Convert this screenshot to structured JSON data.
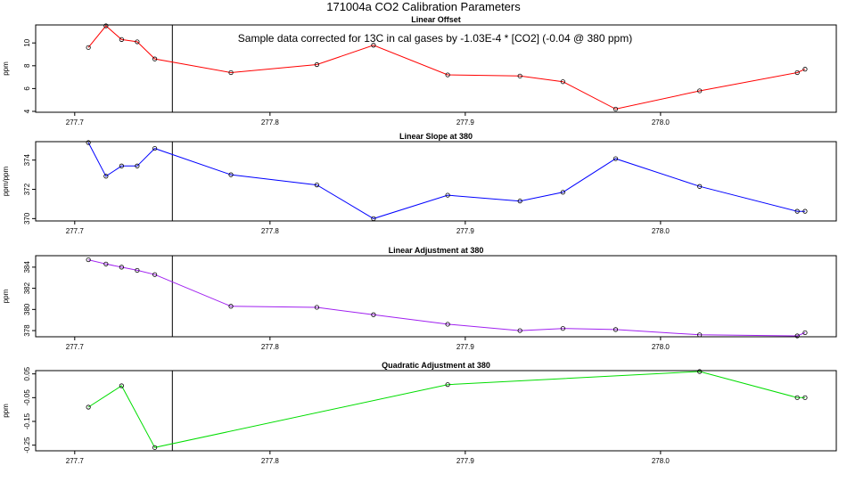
{
  "figure": {
    "title": "171004a   CO2 Calibration Parameters",
    "annotation": "Sample data corrected for 13C in cal gases by -1.03E-4 * [CO2] (-0.04 @ 380 ppm)"
  },
  "chart_data": [
    {
      "type": "line",
      "title": "Linear Offset",
      "xlabel": "",
      "ylabel": "ppm",
      "xlim": [
        277.68,
        278.09
      ],
      "ylim": [
        4,
        11.5
      ],
      "xticks": [
        277.7,
        277.8,
        277.9,
        278.0
      ],
      "xtick_labels": [
        "277.7",
        "277.8",
        "277.9",
        "278.0"
      ],
      "yticks": [
        4,
        6,
        8,
        10
      ],
      "ytick_labels": [
        "4",
        "6",
        "8",
        "10"
      ],
      "vline": 277.75,
      "series": [
        {
          "color": "#ff0000",
          "x": [
            277.707,
            277.716,
            277.724,
            277.732,
            277.741,
            277.78,
            277.824,
            277.853,
            277.891,
            277.928,
            277.95,
            277.977,
            278.02,
            278.07,
            278.074
          ],
          "y": [
            9.6,
            11.5,
            10.3,
            10.1,
            8.6,
            7.4,
            8.1,
            9.8,
            7.2,
            7.1,
            6.6,
            4.2,
            5.8,
            7.4,
            7.7
          ]
        }
      ]
    },
    {
      "type": "line",
      "title": "Linear Slope at 380",
      "xlabel": "",
      "ylabel": "ppm/ppm",
      "xlim": [
        277.68,
        278.09
      ],
      "ylim": [
        369.9,
        375.2
      ],
      "xticks": [
        277.7,
        277.8,
        277.9,
        278.0
      ],
      "xtick_labels": [
        "277.7",
        "277.8",
        "277.9",
        "278.0"
      ],
      "yticks": [
        370,
        372,
        374
      ],
      "ytick_labels": [
        "370",
        "372",
        "374"
      ],
      "vline": 277.75,
      "series": [
        {
          "color": "#0000ff",
          "x": [
            277.707,
            277.716,
            277.724,
            277.732,
            277.741,
            277.78,
            277.824,
            277.853,
            277.891,
            277.928,
            277.95,
            277.977,
            278.02,
            278.07,
            278.074
          ],
          "y": [
            375.2,
            372.9,
            373.6,
            373.6,
            374.8,
            373.0,
            372.3,
            370.0,
            371.6,
            371.2,
            371.8,
            374.1,
            372.2,
            370.5,
            370.5
          ]
        }
      ]
    },
    {
      "type": "line",
      "title": "Linear Adjustment at 380",
      "xlabel": "",
      "ylabel": "ppm",
      "xlim": [
        277.68,
        278.09
      ],
      "ylim": [
        377.5,
        385.0
      ],
      "xticks": [
        277.7,
        277.8,
        277.9,
        278.0
      ],
      "xtick_labels": [
        "277.7",
        "277.8",
        "277.9",
        "278.0"
      ],
      "yticks": [
        378,
        380,
        382,
        384
      ],
      "ytick_labels": [
        "378",
        "380",
        "382",
        "384"
      ],
      "vline": 277.75,
      "series": [
        {
          "color": "#a020f0",
          "x": [
            277.707,
            277.716,
            277.724,
            277.732,
            277.741,
            277.78,
            277.824,
            277.853,
            277.891,
            277.928,
            277.95,
            277.977,
            278.02,
            278.07,
            278.074
          ],
          "y": [
            384.7,
            384.3,
            384.0,
            383.7,
            383.3,
            380.3,
            380.2,
            379.5,
            378.6,
            378.0,
            378.2,
            378.1,
            377.6,
            377.5,
            377.8
          ]
        }
      ]
    },
    {
      "type": "line",
      "title": "Quadratic Adjustment at 380",
      "xlabel": "",
      "ylabel": "ppm",
      "xlim": [
        277.68,
        278.09
      ],
      "ylim": [
        -0.27,
        0.06
      ],
      "xticks": [
        277.7,
        277.8,
        277.9,
        278.0
      ],
      "xtick_labels": [
        "277.7",
        "277.8",
        "277.9",
        "278.0"
      ],
      "yticks": [
        -0.25,
        -0.15,
        -0.05,
        0.05
      ],
      "ytick_labels": [
        "-0.25",
        "-0.15",
        "-0.05",
        "0.05"
      ],
      "vline": 277.75,
      "series": [
        {
          "color": "#00dd00",
          "x": [
            277.707,
            277.724,
            277.741,
            277.891,
            278.02,
            278.07,
            278.074
          ],
          "y": [
            -0.09,
            0.0,
            -0.26,
            0.005,
            0.06,
            -0.05,
            -0.05
          ]
        }
      ]
    }
  ]
}
